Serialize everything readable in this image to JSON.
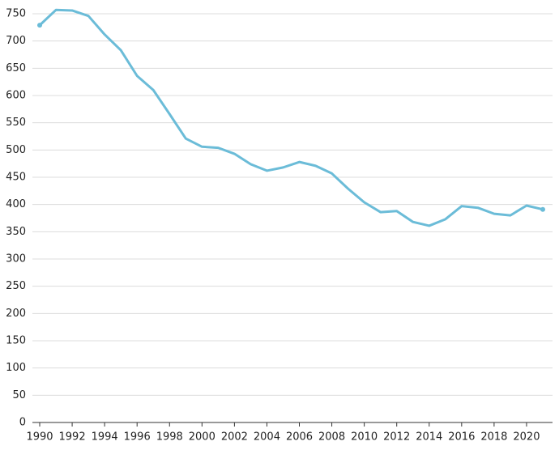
{
  "chart_data": {
    "type": "line",
    "x": [
      1990,
      1991,
      1992,
      1993,
      1994,
      1995,
      1996,
      1997,
      1998,
      1999,
      2000,
      2001,
      2002,
      2003,
      2004,
      2005,
      2006,
      2007,
      2008,
      2009,
      2010,
      2011,
      2012,
      2013,
      2014,
      2015,
      2016,
      2017,
      2018,
      2019,
      2020,
      2021
    ],
    "series": [
      {
        "color": "#6bbcd8",
        "values": [
          729,
          757,
          756,
          746,
          712,
          683,
          636,
          610,
          566,
          521,
          506,
          504,
          493,
          474,
          462,
          468,
          478,
          471,
          457,
          429,
          404,
          386,
          388,
          368,
          361,
          373,
          397,
          394,
          383,
          380,
          398,
          391
        ]
      }
    ],
    "xlim": [
      1989.55,
      2021.6
    ],
    "xticks": [
      1990,
      1992,
      1994,
      1996,
      1998,
      2000,
      2002,
      2004,
      2006,
      2008,
      2010,
      2012,
      2014,
      2016,
      2018,
      2020
    ],
    "ylim": [
      0,
      750
    ],
    "yticks": [
      0,
      50,
      100,
      150,
      200,
      250,
      300,
      350,
      400,
      450,
      500,
      550,
      600,
      650,
      700,
      750
    ],
    "grid": true
  }
}
